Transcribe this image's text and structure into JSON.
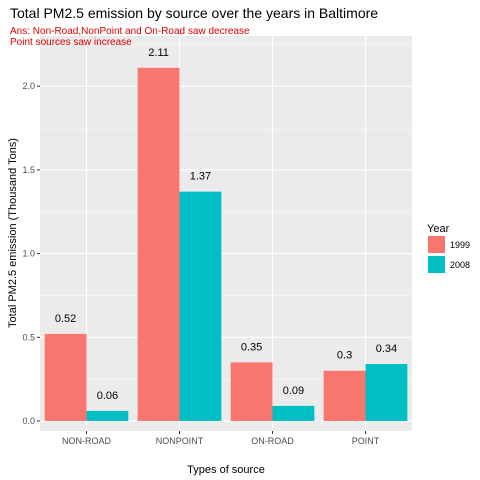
{
  "chart_data": {
    "type": "bar",
    "title": "Total PM2.5 emission by source over the years in Baltimore",
    "subtitle_lines": [
      "Ans: Non-Road,NonPoint and On-Road saw decrease",
      "Point sources saw increase"
    ],
    "xlabel": "Types of source",
    "ylabel": "Total PM2.5 emission (Thousand Tons)",
    "categories": [
      "NON-ROAD",
      "NONPOINT",
      "ON-ROAD",
      "POINT"
    ],
    "series": [
      {
        "name": "1999",
        "values": [
          0.52,
          2.11,
          0.35,
          0.3
        ],
        "labels": [
          "0.52",
          "2.11",
          "0.35",
          "0.3"
        ],
        "color": "#f8766d"
      },
      {
        "name": "2008",
        "values": [
          0.06,
          1.37,
          0.09,
          0.34
        ],
        "labels": [
          "0.06",
          "1.37",
          "0.09",
          "0.34"
        ],
        "color": "#00bfc4"
      }
    ],
    "ylim": [
      -0.06,
      2.3
    ],
    "yticks": [
      0.0,
      0.5,
      1.0,
      1.5,
      2.0
    ],
    "ytick_labels": [
      "0.0",
      "0.5",
      "1.0",
      "1.5",
      "2.0"
    ],
    "grid": true,
    "panel_color": "#ebebeb",
    "grid_color": "#ffffff",
    "legend": {
      "title": "Year",
      "position": "right"
    }
  }
}
